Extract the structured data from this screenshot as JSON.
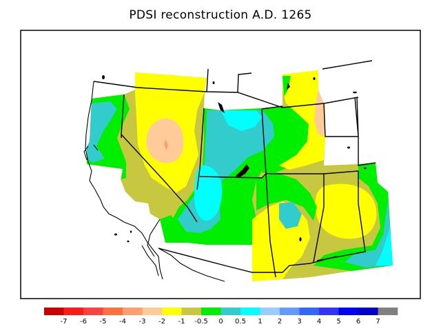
{
  "title": "PDSI reconstruction A.D. 1265",
  "legend": {
    "colors": [
      "#cc0000",
      "#ff1a1a",
      "#ff4040",
      "#ff6f40",
      "#ff9f70",
      "#ffcc99",
      "#ffff00",
      "#c8c840",
      "#00ee00",
      "#33cccc",
      "#00ffff",
      "#99ccff",
      "#6699ff",
      "#3366ff",
      "#3333ff",
      "#0000ff",
      "#0000cc",
      "#808080"
    ],
    "labels": [
      "-7",
      "-6",
      "-5",
      "-4",
      "-3",
      "-2",
      "-1",
      "-0.5",
      "0",
      "0.5",
      "1",
      "2",
      "3",
      "4",
      "5",
      "6",
      "7"
    ]
  }
}
